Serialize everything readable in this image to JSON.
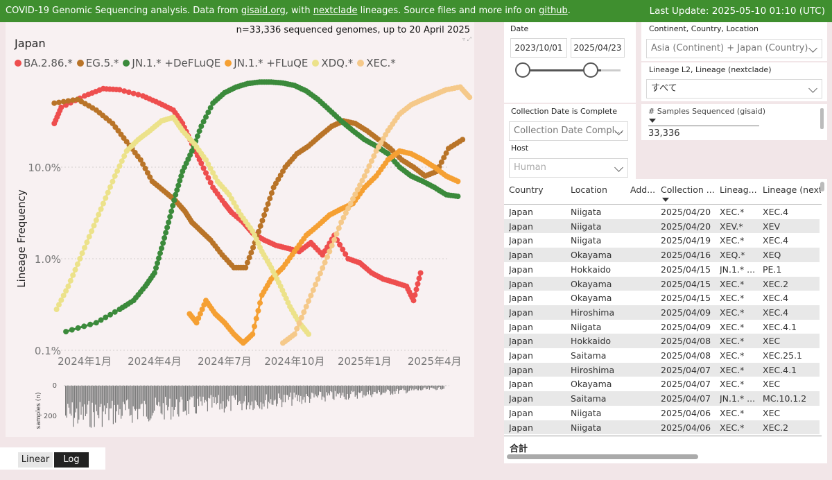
{
  "header": {
    "prefix": "COVID-19 Genomic Sequencing analysis. Data from ",
    "link1": "gisaid.org",
    "mid1": ", with ",
    "link2": "nextclade",
    "mid2": " lineages. Source files and more info on ",
    "link3": "github",
    "suffix": ".",
    "last_update": "Last Update: 2025-05-10 01:10 (UTC)"
  },
  "chart": {
    "title": "Japan",
    "genomes": "n=33,336 sequenced genomes, up to 20 April 2025",
    "sub_axis_label": "samples (n)",
    "sub_ticks": [
      "0",
      "200"
    ]
  },
  "chart_data": {
    "type": "line",
    "ylabel": "Lineage Frequency",
    "y_scale": "log",
    "y_ticks": [
      "10.0%",
      "1.0%",
      "0.1%"
    ],
    "x_ticks": [
      "2024年1月",
      "2024年4月",
      "2024年7月",
      "2024年10月",
      "2025年1月",
      "2025年4月"
    ],
    "x_tick_months": [
      0,
      3,
      6,
      9,
      12,
      15
    ],
    "ylim": [
      0.1,
      100
    ],
    "legend_position": "top-left",
    "series": [
      {
        "name": "BA.2.86.*",
        "color": "#ee4e4e",
        "points": [
          [
            -1.3,
            30
          ],
          [
            -1,
            45
          ],
          [
            0,
            60
          ],
          [
            0.8,
            72
          ],
          [
            1.5,
            70
          ],
          [
            2.5,
            60
          ],
          [
            3.2,
            50
          ],
          [
            3.8,
            42
          ],
          [
            4.2,
            30
          ],
          [
            4.6,
            18
          ],
          [
            5,
            11
          ],
          [
            5.5,
            6
          ],
          [
            6,
            4
          ],
          [
            6.3,
            3.2
          ],
          [
            6.8,
            2.5
          ],
          [
            7.2,
            1.9
          ],
          [
            7.7,
            1.6
          ],
          [
            8.2,
            1.4
          ],
          [
            8.7,
            1.3
          ],
          [
            9.2,
            1.2
          ],
          [
            9.7,
            1.5
          ],
          [
            10.2,
            1.1
          ],
          [
            10.7,
            1.8
          ],
          [
            11.3,
            1.0
          ],
          [
            11.8,
            0.9
          ],
          [
            12.3,
            0.7
          ],
          [
            12.8,
            0.6
          ],
          [
            13.3,
            0.55
          ],
          [
            13.8,
            0.5
          ],
          [
            14.1,
            0.35
          ],
          [
            14.4,
            0.7
          ]
        ]
      },
      {
        "name": "EG.5.*",
        "color": "#b97428",
        "points": [
          [
            -1.3,
            50
          ],
          [
            -0.3,
            55
          ],
          [
            0.5,
            42
          ],
          [
            1.2,
            30
          ],
          [
            1.8,
            19
          ],
          [
            2.4,
            12
          ],
          [
            2.9,
            7
          ],
          [
            3.4,
            5.5
          ],
          [
            3.9,
            4.3
          ],
          [
            4.3,
            3.3
          ],
          [
            4.6,
            2.5
          ],
          [
            5.0,
            2.0
          ],
          [
            5.4,
            1.6
          ],
          [
            5.9,
            1.1
          ],
          [
            6.4,
            0.8
          ],
          [
            6.9,
            0.8
          ],
          [
            7.3,
            1.5
          ],
          [
            7.7,
            3
          ],
          [
            8.1,
            6
          ],
          [
            8.6,
            10
          ],
          [
            9.1,
            14
          ],
          [
            9.6,
            17
          ],
          [
            10.1,
            22
          ],
          [
            10.6,
            28
          ],
          [
            11.1,
            32
          ],
          [
            11.6,
            30
          ],
          [
            12.1,
            25
          ],
          [
            12.6,
            20
          ],
          [
            13.1,
            16
          ],
          [
            13.6,
            12
          ],
          [
            14.1,
            10
          ],
          [
            14.6,
            8
          ],
          [
            15.1,
            9
          ],
          [
            15.6,
            16
          ],
          [
            16.2,
            20
          ]
        ]
      },
      {
        "name": "JN.1.* +DeFLuQE",
        "color": "#3b8a3b",
        "points": [
          [
            -0.8,
            0.16
          ],
          [
            0.5,
            0.2
          ],
          [
            1.5,
            0.28
          ],
          [
            2.1,
            0.35
          ],
          [
            2.6,
            0.5
          ],
          [
            3,
            0.7
          ],
          [
            3.3,
            1.3
          ],
          [
            3.6,
            2.5
          ],
          [
            3.9,
            5
          ],
          [
            4.2,
            9
          ],
          [
            4.6,
            15
          ],
          [
            5,
            28
          ],
          [
            5.5,
            50
          ],
          [
            6,
            65
          ],
          [
            6.5,
            75
          ],
          [
            7,
            82
          ],
          [
            7.5,
            85
          ],
          [
            8,
            85
          ],
          [
            8.5,
            83
          ],
          [
            9,
            78
          ],
          [
            9.5,
            68
          ],
          [
            10,
            55
          ],
          [
            10.5,
            42
          ],
          [
            11,
            32
          ],
          [
            11.5,
            25
          ],
          [
            12,
            20
          ],
          [
            12.5,
            17
          ],
          [
            13,
            14
          ],
          [
            13.5,
            10
          ],
          [
            14,
            8
          ],
          [
            14.5,
            7
          ],
          [
            15,
            6
          ],
          [
            15.5,
            5
          ],
          [
            16,
            4.8
          ]
        ]
      },
      {
        "name": "JN.1.* +FLuQE",
        "color": "#f5a033",
        "points": [
          [
            4.5,
            0.25
          ],
          [
            4.8,
            0.2
          ],
          [
            5.2,
            0.35
          ],
          [
            5.6,
            0.25
          ],
          [
            6,
            0.2
          ],
          [
            6.4,
            0.15
          ],
          [
            6.8,
            0.12
          ],
          [
            7.2,
            0.15
          ],
          [
            7.6,
            0.4
          ],
          [
            8,
            0.6
          ],
          [
            8.5,
            0.8
          ],
          [
            9,
            1.2
          ],
          [
            9.5,
            1.8
          ],
          [
            10,
            2.3
          ],
          [
            10.5,
            3
          ],
          [
            11,
            3.5
          ],
          [
            11.5,
            4
          ],
          [
            12,
            6
          ],
          [
            12.5,
            8
          ],
          [
            13,
            12
          ],
          [
            13.5,
            15
          ],
          [
            14,
            14
          ],
          [
            14.5,
            12
          ],
          [
            15,
            10
          ],
          [
            15.5,
            8
          ],
          [
            16,
            7
          ]
        ]
      },
      {
        "name": "XDQ.*",
        "color": "#ece28a",
        "points": [
          [
            -1.2,
            0.28
          ],
          [
            -0.7,
            0.5
          ],
          [
            -0.2,
            1
          ],
          [
            0.3,
            2
          ],
          [
            0.8,
            4
          ],
          [
            1.3,
            8
          ],
          [
            1.8,
            15
          ],
          [
            2.3,
            20
          ],
          [
            2.8,
            25
          ],
          [
            3.3,
            32
          ],
          [
            3.8,
            35
          ],
          [
            4.2,
            25
          ],
          [
            4.7,
            18
          ],
          [
            5.2,
            12
          ],
          [
            5.7,
            7
          ],
          [
            6.2,
            5
          ],
          [
            6.7,
            3
          ],
          [
            7.2,
            2
          ],
          [
            7.6,
            1.2
          ],
          [
            8,
            0.8
          ],
          [
            8.4,
            0.5
          ],
          [
            8.8,
            0.3
          ],
          [
            9.2,
            0.2
          ],
          [
            9.6,
            0.15
          ]
        ]
      },
      {
        "name": "XEC.*",
        "color": "#f5c98a",
        "points": [
          [
            8.5,
            0.12
          ],
          [
            9,
            0.15
          ],
          [
            9.5,
            0.3
          ],
          [
            10,
            0.6
          ],
          [
            10.5,
            1.2
          ],
          [
            11,
            2.5
          ],
          [
            11.5,
            4.5
          ],
          [
            12,
            8
          ],
          [
            12.5,
            15
          ],
          [
            13,
            25
          ],
          [
            13.5,
            38
          ],
          [
            14,
            48
          ],
          [
            14.5,
            55
          ],
          [
            15,
            62
          ],
          [
            15.5,
            70
          ],
          [
            16.1,
            75
          ],
          [
            16.5,
            58
          ]
        ]
      }
    ]
  },
  "scale_tabs": {
    "linear": "Linear",
    "log": "Log"
  },
  "filters": {
    "date_label": "Date",
    "date_from": "2023/10/01",
    "date_to": "2025/04/23",
    "location_label": "Continent, Country, Location",
    "location_value": "Asia (Continent) + Japan (Country)",
    "lineage_label": "Lineage L2, Lineage (nextclade)",
    "lineage_value": "すべて",
    "complete_label": "Collection Date is Complete",
    "complete_value": "Collection Date Compl...",
    "host_label": "Host",
    "host_value": "Human",
    "samples_label": "# Samples Sequenced (gisaid)",
    "samples_value": "33,336"
  },
  "table": {
    "headers": [
      "Country",
      "Location",
      "Add...",
      "Collection ...",
      "Lineag...",
      "Lineage (nextc"
    ],
    "rows": [
      [
        "Japan",
        "Niigata",
        "",
        "2025/04/20",
        "XEC.*",
        "XEC.4"
      ],
      [
        "Japan",
        "Niigata",
        "",
        "2025/04/20",
        "XEV.*",
        "XEV"
      ],
      [
        "Japan",
        "Niigata",
        "",
        "2025/04/19",
        "XEC.*",
        "XEC.4"
      ],
      [
        "Japan",
        "Okayama",
        "",
        "2025/04/16",
        "XEQ.*",
        "XEQ"
      ],
      [
        "Japan",
        "Hokkaido",
        "",
        "2025/04/15",
        "JN.1.* ...",
        "PE.1"
      ],
      [
        "Japan",
        "Okayama",
        "",
        "2025/04/15",
        "XEC.*",
        "XEC.2"
      ],
      [
        "Japan",
        "Okayama",
        "",
        "2025/04/15",
        "XEC.*",
        "XEC.4"
      ],
      [
        "Japan",
        "Hiroshima",
        "",
        "2025/04/09",
        "XEC.*",
        "XEC.4"
      ],
      [
        "Japan",
        "Niigata",
        "",
        "2025/04/09",
        "XEC.*",
        "XEC.4.1"
      ],
      [
        "Japan",
        "Hokkaido",
        "",
        "2025/04/08",
        "XEC.*",
        "XEC"
      ],
      [
        "Japan",
        "Saitama",
        "",
        "2025/04/08",
        "XEC.*",
        "XEC.25.1"
      ],
      [
        "Japan",
        "Hiroshima",
        "",
        "2025/04/07",
        "XEC.*",
        "XEC.4.1"
      ],
      [
        "Japan",
        "Okayama",
        "",
        "2025/04/07",
        "XEC.*",
        "XEC"
      ],
      [
        "Japan",
        "Saitama",
        "",
        "2025/04/07",
        "JN.1.* ...",
        "MC.10.1.2"
      ],
      [
        "Japan",
        "Niigata",
        "",
        "2025/04/06",
        "XEC.*",
        "XEC"
      ],
      [
        "Japan",
        "Niigata",
        "",
        "2025/04/06",
        "XEC.*",
        "XEC.2"
      ]
    ],
    "total_label": "合計"
  }
}
